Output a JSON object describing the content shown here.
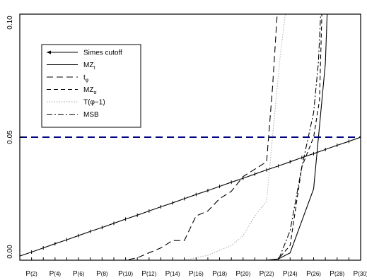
{
  "chart_data": {
    "type": "line",
    "title": "",
    "xlabel": "",
    "ylabel": "",
    "x": [
      1,
      2,
      3,
      4,
      5,
      6,
      7,
      8,
      9,
      10,
      11,
      12,
      13,
      14,
      15,
      16,
      17,
      18,
      19,
      20,
      21,
      22,
      23,
      24,
      25,
      26,
      27,
      28,
      29,
      30
    ],
    "x_tick_labels": [
      "P(2)",
      "P(4)",
      "P(6)",
      "P(8)",
      "P(10)",
      "P(12)",
      "P(14)",
      "P(16)",
      "P(18)",
      "P(20)",
      "P(22)",
      "P(24)",
      "P(26)",
      "P(28)",
      "P(30)"
    ],
    "x_tick_positions": [
      2,
      4,
      6,
      8,
      10,
      12,
      14,
      16,
      18,
      20,
      22,
      24,
      26,
      28,
      30
    ],
    "xlim": [
      1,
      30
    ],
    "ylim": [
      0,
      0.1
    ],
    "y_ticks": [
      0,
      0.05,
      0.1
    ],
    "y_tick_labels": [
      "0.00",
      "0.05",
      "0.10"
    ],
    "grid": false,
    "legend": "upper-left",
    "reference_line": {
      "y": 0.05,
      "color": "#000080"
    },
    "legend_entries": [
      {
        "key": "simes",
        "label": "Simes cutoff",
        "sub": ""
      },
      {
        "key": "mzt",
        "label": "MZ",
        "sub": "t"
      },
      {
        "key": "tphi",
        "label": "t",
        "sub": "φ"
      },
      {
        "key": "mza",
        "label": "MZ",
        "sub": "α"
      },
      {
        "key": "tphi1",
        "label": "T(φ−1)",
        "sub": ""
      },
      {
        "key": "msb",
        "label": "MSB",
        "sub": ""
      }
    ],
    "series": [
      {
        "key": "simes",
        "x": [
          1,
          2,
          3,
          4,
          5,
          6,
          7,
          8,
          9,
          10,
          11,
          12,
          13,
          14,
          15,
          16,
          17,
          18,
          19,
          20,
          21,
          22,
          23,
          24,
          25,
          26,
          27,
          28,
          29,
          30
        ],
        "y": [
          0.0017,
          0.0033,
          0.005,
          0.0067,
          0.0083,
          0.01,
          0.0117,
          0.0133,
          0.015,
          0.0167,
          0.0183,
          0.02,
          0.0217,
          0.0233,
          0.025,
          0.0267,
          0.0283,
          0.03,
          0.0317,
          0.0333,
          0.035,
          0.0367,
          0.0383,
          0.04,
          0.0417,
          0.0433,
          0.045,
          0.0467,
          0.0483,
          0.05
        ]
      },
      {
        "key": "mzt",
        "x": [
          1,
          2,
          3,
          4,
          5,
          6,
          7,
          8,
          9,
          10,
          11,
          12,
          13,
          14,
          15,
          16,
          17,
          18,
          19,
          20,
          21,
          22,
          23,
          24,
          25,
          26,
          27,
          27.15
        ],
        "y": [
          0,
          0,
          0,
          0,
          0,
          0,
          0,
          0,
          0,
          0,
          0,
          0,
          0,
          0,
          0,
          0,
          0,
          0,
          0,
          0,
          0,
          0,
          0.0005,
          0.003,
          0.016,
          0.029,
          0.08,
          0.1
        ]
      },
      {
        "key": "tphi",
        "x": [
          1,
          2,
          3,
          4,
          5,
          6,
          7,
          8,
          9,
          10,
          11,
          12,
          13,
          14,
          15,
          16,
          17,
          18,
          19,
          20,
          21,
          22,
          22.5,
          22.9
        ],
        "y": [
          0,
          0,
          0,
          0,
          0,
          0,
          0,
          0,
          0,
          0,
          0.001,
          0.003,
          0.005,
          0.008,
          0.008,
          0.018,
          0.02,
          0.025,
          0.028,
          0.034,
          0.037,
          0.04,
          0.07,
          0.1
        ]
      },
      {
        "key": "mza",
        "x": [
          1,
          2,
          3,
          4,
          5,
          6,
          7,
          8,
          9,
          10,
          11,
          12,
          13,
          14,
          15,
          16,
          17,
          18,
          19,
          20,
          21,
          22,
          23,
          24,
          25,
          26,
          26.5,
          26.7
        ],
        "y": [
          0,
          0,
          0,
          0,
          0,
          0,
          0,
          0,
          0,
          0,
          0,
          0,
          0,
          0,
          0,
          0,
          0,
          0,
          0,
          0,
          0,
          0,
          0.0005,
          0.006,
          0.038,
          0.05,
          0.065,
          0.1
        ]
      },
      {
        "key": "tphi1",
        "x": [
          1,
          2,
          3,
          4,
          5,
          6,
          7,
          8,
          9,
          10,
          11,
          12,
          13,
          14,
          15,
          16,
          17,
          18,
          19,
          20,
          21,
          22,
          22.5,
          23.2,
          23.6
        ],
        "y": [
          0,
          0,
          0,
          0,
          0,
          0,
          0,
          0,
          0,
          0,
          0,
          0,
          0,
          0,
          0,
          0.001,
          0.002,
          0.004,
          0.006,
          0.01,
          0.018,
          0.024,
          0.05,
          0.085,
          0.1
        ]
      },
      {
        "key": "msb",
        "x": [
          1,
          2,
          3,
          4,
          5,
          6,
          7,
          8,
          9,
          10,
          11,
          12,
          13,
          14,
          15,
          16,
          17,
          18,
          19,
          20,
          21,
          22,
          23,
          24,
          25,
          26,
          26.4,
          26.6
        ],
        "y": [
          0,
          0,
          0,
          0,
          0,
          0,
          0,
          0,
          0,
          0,
          0,
          0,
          0,
          0,
          0,
          0,
          0,
          0,
          0,
          0,
          0,
          0,
          0,
          0.012,
          0.038,
          0.06,
          0.08,
          0.1
        ]
      }
    ]
  }
}
